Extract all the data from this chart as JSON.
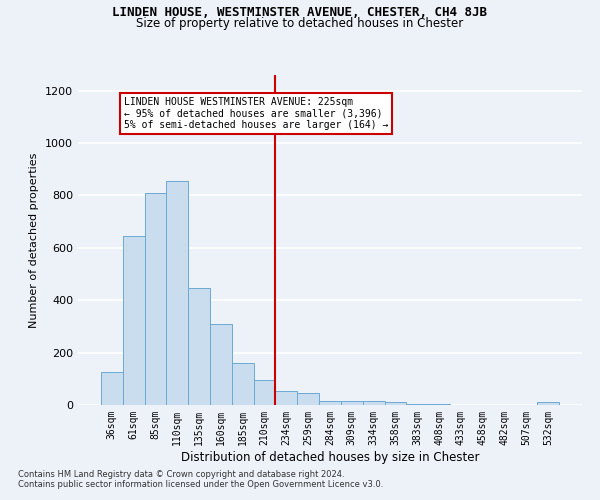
{
  "title": "LINDEN HOUSE, WESTMINSTER AVENUE, CHESTER, CH4 8JB",
  "subtitle": "Size of property relative to detached houses in Chester",
  "xlabel": "Distribution of detached houses by size in Chester",
  "ylabel": "Number of detached properties",
  "bar_color": "#c9ddef",
  "bar_edge_color": "#6aaad4",
  "categories": [
    "36sqm",
    "61sqm",
    "85sqm",
    "110sqm",
    "135sqm",
    "160sqm",
    "185sqm",
    "210sqm",
    "234sqm",
    "259sqm",
    "284sqm",
    "309sqm",
    "334sqm",
    "358sqm",
    "383sqm",
    "408sqm",
    "433sqm",
    "458sqm",
    "482sqm",
    "507sqm",
    "532sqm"
  ],
  "values": [
    125,
    645,
    810,
    855,
    445,
    310,
    160,
    95,
    55,
    45,
    15,
    15,
    17,
    12,
    3,
    2,
    1,
    1,
    1,
    1,
    12
  ],
  "vline_index": 7.5,
  "vline_color": "#cc0000",
  "ylim": [
    0,
    1260
  ],
  "yticks": [
    0,
    200,
    400,
    600,
    800,
    1000,
    1200
  ],
  "annotation_line1": "LINDEN HOUSE WESTMINSTER AVENUE: 225sqm",
  "annotation_line2": "← 95% of detached houses are smaller (3,396)",
  "annotation_line3": "5% of semi-detached houses are larger (164) →",
  "annotation_box_facecolor": "#ffffff",
  "annotation_box_edgecolor": "#cc0000",
  "footer_line1": "Contains HM Land Registry data © Crown copyright and database right 2024.",
  "footer_line2": "Contains public sector information licensed under the Open Government Licence v3.0.",
  "background_color": "#edf2f9",
  "grid_color": "#ffffff"
}
